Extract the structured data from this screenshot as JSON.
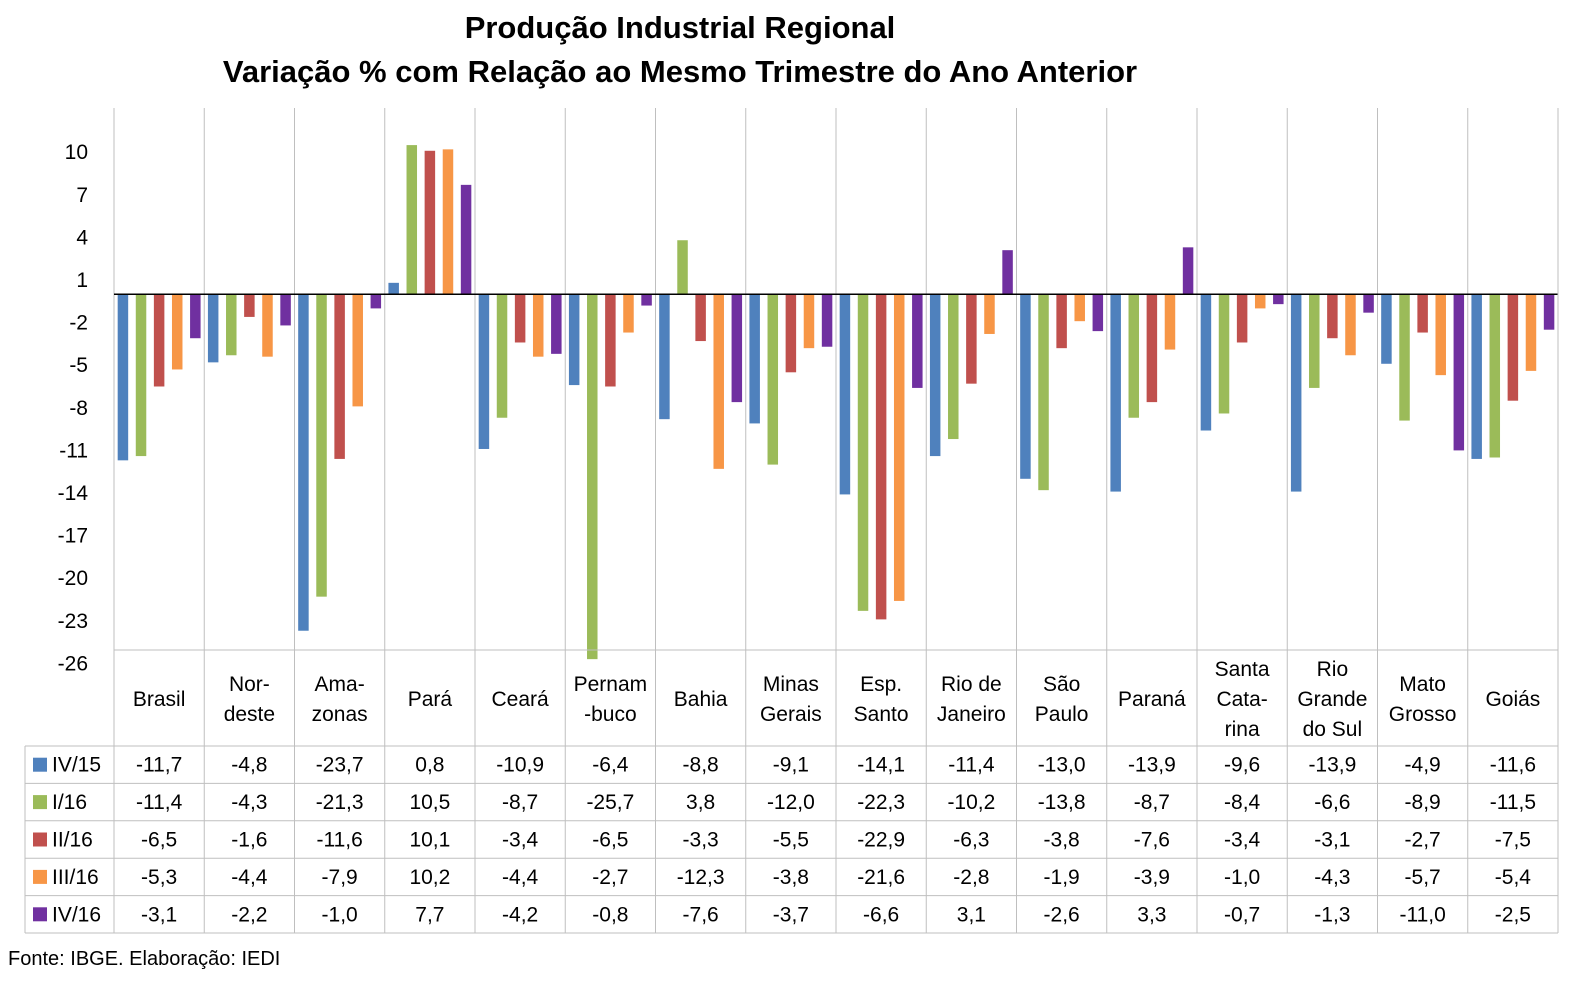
{
  "chart_data": {
    "type": "bar",
    "title": "Produção Industrial Regional",
    "subtitle": "Variação % com Relação ao Mesmo Trimestre do Ano Anterior",
    "xlabel": "",
    "ylabel": "",
    "ylim": [
      -26,
      12
    ],
    "yticks": [
      "10",
      "7",
      "4",
      "1",
      "-2",
      "-5",
      "-8",
      "-11",
      "-14",
      "-17",
      "-20",
      "-23",
      "-26"
    ],
    "ytick_values": [
      10,
      7,
      4,
      1,
      -2,
      -5,
      -8,
      -11,
      -14,
      -17,
      -20,
      -23,
      -26
    ],
    "grid": "vertical category separators",
    "legend": "data table below chart",
    "categories": [
      [
        "Brasil"
      ],
      [
        "Nor-",
        "deste"
      ],
      [
        "Ama-",
        "zonas"
      ],
      [
        "Pará"
      ],
      [
        "Ceará"
      ],
      [
        "Pernam",
        "-buco"
      ],
      [
        "Bahia"
      ],
      [
        "Minas",
        "Gerais"
      ],
      [
        "Esp.",
        "Santo"
      ],
      [
        "Rio de",
        "Janeiro"
      ],
      [
        "São",
        "Paulo"
      ],
      [
        "Paraná"
      ],
      [
        "Santa",
        "Cata-",
        "rina"
      ],
      [
        "Rio",
        "Grande",
        "do Sul"
      ],
      [
        "Mato",
        "Grosso"
      ],
      [
        "Goiás"
      ]
    ],
    "series": [
      {
        "name": "IV/15",
        "color": "#4f81bd",
        "values": [
          -11.7,
          -4.8,
          -23.7,
          0.8,
          -10.9,
          -6.4,
          -8.8,
          -9.1,
          -14.1,
          -11.4,
          -13.0,
          -13.9,
          -9.6,
          -13.9,
          -4.9,
          -11.6
        ],
        "labels": [
          "-11,7",
          "-4,8",
          "-23,7",
          "0,8",
          "-10,9",
          "-6,4",
          "-8,8",
          "-9,1",
          "-14,1",
          "-11,4",
          "-13,0",
          "-13,9",
          "-9,6",
          "-13,9",
          "-4,9",
          "-11,6"
        ]
      },
      {
        "name": "I/16",
        "color": "#9bbb59",
        "values": [
          -11.4,
          -4.3,
          -21.3,
          10.5,
          -8.7,
          -25.7,
          3.8,
          -12.0,
          -22.3,
          -10.2,
          -13.8,
          -8.7,
          -8.4,
          -6.6,
          -8.9,
          -11.5
        ],
        "labels": [
          "-11,4",
          "-4,3",
          "-21,3",
          "10,5",
          "-8,7",
          "-25,7",
          "3,8",
          "-12,0",
          "-22,3",
          "-10,2",
          "-13,8",
          "-8,7",
          "-8,4",
          "-6,6",
          "-8,9",
          "-11,5"
        ]
      },
      {
        "name": "II/16",
        "color": "#c0504d",
        "values": [
          -6.5,
          -1.6,
          -11.6,
          10.1,
          -3.4,
          -6.5,
          -3.3,
          -5.5,
          -22.9,
          -6.3,
          -3.8,
          -7.6,
          -3.4,
          -3.1,
          -2.7,
          -7.5
        ],
        "labels": [
          "-6,5",
          "-1,6",
          "-11,6",
          "10,1",
          "-3,4",
          "-6,5",
          "-3,3",
          "-5,5",
          "-22,9",
          "-6,3",
          "-3,8",
          "-7,6",
          "-3,4",
          "-3,1",
          "-2,7",
          "-7,5"
        ]
      },
      {
        "name": "III/16",
        "color": "#f79646",
        "values": [
          -5.3,
          -4.4,
          -7.9,
          10.2,
          -4.4,
          -2.7,
          -12.3,
          -3.8,
          -21.6,
          -2.8,
          -1.9,
          -3.9,
          -1.0,
          -4.3,
          -5.7,
          -5.4
        ],
        "labels": [
          "-5,3",
          "-4,4",
          "-7,9",
          "10,2",
          "-4,4",
          "-2,7",
          "-12,3",
          "-3,8",
          "-21,6",
          "-2,8",
          "-1,9",
          "-3,9",
          "-1,0",
          "-4,3",
          "-5,7",
          "-5,4"
        ]
      },
      {
        "name": "IV/16",
        "color": "#7030a0",
        "values": [
          -3.1,
          -2.2,
          -1.0,
          7.7,
          -4.2,
          -0.8,
          -7.6,
          -3.7,
          -6.6,
          3.1,
          -2.6,
          3.3,
          -0.7,
          -1.3,
          -11.0,
          -2.5
        ],
        "labels": [
          "-3,1",
          "-2,2",
          "-1,0",
          "7,7",
          "-4,2",
          "-0,8",
          "-7,6",
          "-3,7",
          "-6,6",
          "3,1",
          "-2,6",
          "3,3",
          "-0,7",
          "-1,3",
          "-11,0",
          "-2,5"
        ]
      }
    ]
  },
  "source": "Fonte: IBGE. Elaboração: IEDI",
  "colors": {
    "border": "#bfbfbf",
    "axis": "#000000"
  }
}
